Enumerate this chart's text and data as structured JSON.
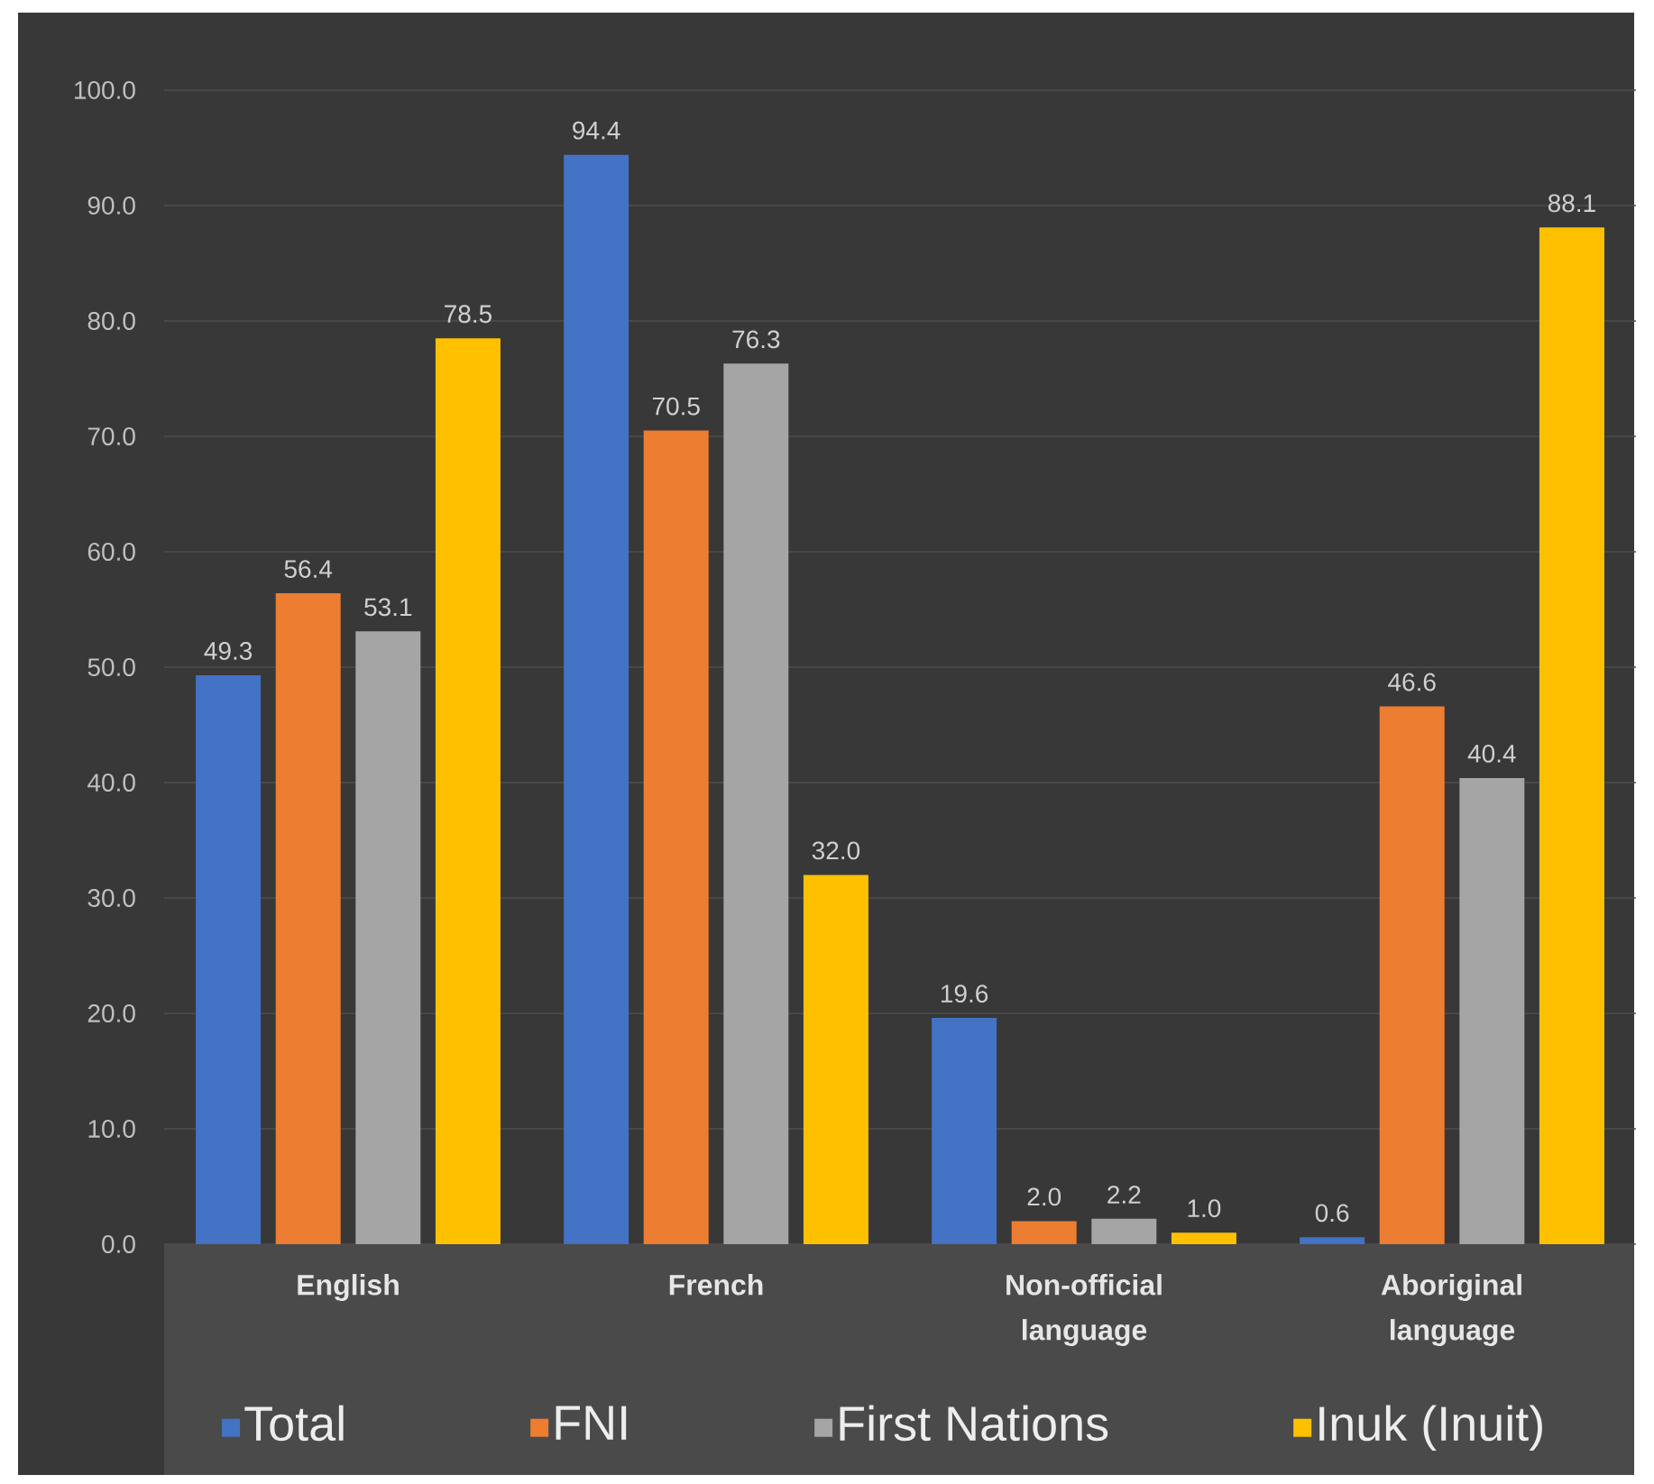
{
  "chart_data": {
    "type": "bar",
    "categories": [
      "English",
      "French",
      "Non-official language",
      "Aboriginal language"
    ],
    "series": [
      {
        "name": "Total",
        "color": "#4472c4",
        "values": [
          49.3,
          94.4,
          19.6,
          0.6
        ],
        "value_labels": [
          "49.3",
          "94.4",
          "19.6",
          "0.6"
        ]
      },
      {
        "name": "FNI",
        "color": "#ed7d31",
        "values": [
          56.4,
          70.5,
          2.0,
          46.6
        ],
        "value_labels": [
          "56.4",
          "70.5",
          "2.0",
          "46.6"
        ]
      },
      {
        "name": "First Nations",
        "color": "#a5a5a5",
        "values": [
          53.1,
          76.3,
          2.2,
          40.4
        ],
        "value_labels": [
          "53.1",
          "76.3",
          "2.2",
          "40.4"
        ]
      },
      {
        "name": "Inuk (Inuit)",
        "color": "#ffc000",
        "values": [
          78.5,
          32.0,
          1.0,
          88.1
        ],
        "value_labels": [
          "78.5",
          "32.0",
          "1.0",
          "88.1"
        ]
      }
    ],
    "ylim": [
      0,
      100
    ],
    "yticks": [
      {
        "value": 0,
        "label": "0.0"
      },
      {
        "value": 10,
        "label": "10.0"
      },
      {
        "value": 20,
        "label": "20.0"
      },
      {
        "value": 30,
        "label": "30.0"
      },
      {
        "value": 40,
        "label": "40.0"
      },
      {
        "value": 50,
        "label": "50.0"
      },
      {
        "value": 60,
        "label": "60.0"
      },
      {
        "value": 70,
        "label": "70.0"
      },
      {
        "value": 80,
        "label": "80.0"
      },
      {
        "value": 90,
        "label": "90.0"
      },
      {
        "value": 100,
        "label": "100.0"
      }
    ],
    "grid": "y",
    "legend": "bottom"
  }
}
